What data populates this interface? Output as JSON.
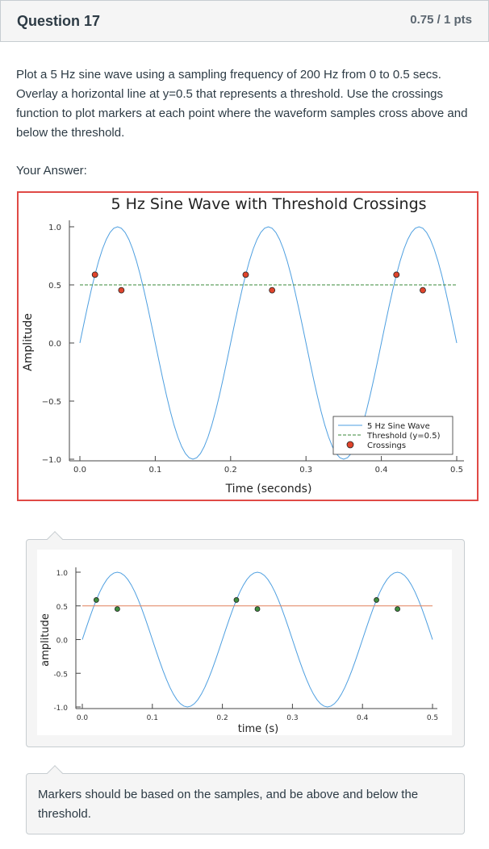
{
  "question": {
    "title": "Question 17",
    "points": "0.75 / 1 pts",
    "text": "Plot a 5 Hz sine wave using a sampling frequency of 200 Hz from 0 to 0.5 secs.  Overlay a horizontal line at y=0.5 that represents a threshold.  Use the crossings function to plot markers at each point where the waveform samples cross above and below the threshold.",
    "your_answer_label": "Your Answer:"
  },
  "colors": {
    "answer_border": "#e04a46",
    "sine_answer": "#4e9fe0",
    "threshold_answer": "#3a8a3a",
    "marker_answer": "#e0442c",
    "sine_comment": "#4e9fe0",
    "threshold_comment": "#e0805a",
    "marker_comment": "#3f8f3f"
  },
  "comments": {
    "comment2_text": "Markers should be based on the samples, and be above and below the threshold."
  },
  "chart_data": [
    {
      "type": "line",
      "title": "5 Hz Sine Wave with Threshold Crossings",
      "xlabel": "Time (seconds)",
      "ylabel": "Amplitude",
      "xlim": [
        0,
        0.5
      ],
      "ylim": [
        -1.0,
        1.0
      ],
      "xticks": [
        0.0,
        0.1,
        0.2,
        0.3,
        0.4,
        0.5
      ],
      "xtick_labels": [
        "0.0",
        "0.1",
        "0.2",
        "0.3",
        "0.4",
        "0.5"
      ],
      "yticks": [
        1.0,
        0.5,
        0.0,
        -0.5,
        -1.0
      ],
      "ytick_labels": [
        "1.0",
        "0.5",
        "0.0",
        "−0.5",
        "−1.0"
      ],
      "grid": false,
      "legend_position": "bottom-right",
      "series": [
        {
          "name": "5 Hz Sine Wave",
          "kind": "line",
          "function": "sin(2*pi*5*t)",
          "t_start": 0,
          "t_end": 0.5,
          "sample_rate": 200
        },
        {
          "name": "Threshold (y=0.5)",
          "kind": "hline",
          "y": 0.5,
          "style": "dashed"
        },
        {
          "name": "Crossings",
          "kind": "scatter",
          "x": [
            0.02,
            0.055,
            0.22,
            0.255,
            0.42,
            0.455
          ],
          "y": [
            0.5878,
            0.454,
            0.5878,
            0.454,
            0.5878,
            0.454
          ]
        }
      ]
    },
    {
      "type": "line",
      "title": "",
      "xlabel": "time (s)",
      "ylabel": "amplitude",
      "xlim": [
        0,
        0.5
      ],
      "ylim": [
        -1.0,
        1.0
      ],
      "xticks": [
        0.0,
        0.1,
        0.2,
        0.3,
        0.4,
        0.5
      ],
      "xtick_labels": [
        "0.0",
        "0.1",
        "0.2",
        "0.3",
        "0.4",
        "0.5"
      ],
      "yticks": [
        1.0,
        0.5,
        0.0,
        -0.5,
        -1.0
      ],
      "ytick_labels": [
        "1.0",
        "0.5",
        "0.0",
        "-0.5",
        "-1.0"
      ],
      "grid": false,
      "legend_position": "none",
      "series": [
        {
          "kind": "line",
          "function": "sin(2*pi*5*t)",
          "t_start": 0,
          "t_end": 0.5,
          "sample_rate": 200
        },
        {
          "kind": "hline",
          "y": 0.5,
          "style": "solid"
        },
        {
          "kind": "scatter",
          "x": [
            0.02,
            0.05,
            0.22,
            0.25,
            0.42,
            0.45
          ],
          "y": [
            0.5878,
            0.454,
            0.5878,
            0.454,
            0.5878,
            0.454
          ]
        }
      ]
    }
  ]
}
